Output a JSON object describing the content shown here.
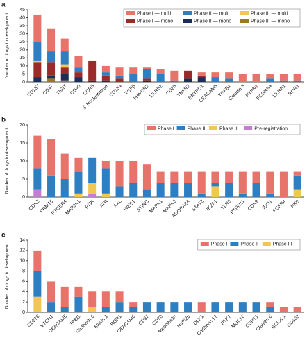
{
  "chart_data": [
    {
      "type": "stacked_bar",
      "label": "a",
      "ylabel": "Number of drugs in development",
      "categories": [
        "CD137",
        "CD47",
        "TIGIT",
        "CD40",
        "CCR8",
        "5' Nucleotidase",
        "CD134",
        "TGFβ",
        "HAVCR2",
        "LILRB2",
        "CD28",
        "TNFR2",
        "ENTPD1",
        "CEACAM5",
        "TGFB1",
        "Claudin 6",
        "PTPN1",
        "FCGR3A",
        "LILRB1",
        "ROR1"
      ],
      "series": [
        {
          "name": "Phase I — multi",
          "color": "#e8736b",
          "values": [
            17,
            14,
            8,
            7,
            0,
            4,
            5,
            4,
            1,
            3,
            6,
            0,
            2,
            3,
            4,
            5,
            5,
            3,
            4,
            4
          ]
        },
        {
          "name": "Phase II — multi",
          "color": "#2e7fc2",
          "values": [
            12,
            7,
            8,
            3,
            0,
            2,
            2,
            5,
            6,
            5,
            1,
            0,
            0,
            3,
            2,
            0,
            0,
            2,
            1,
            1
          ]
        },
        {
          "name": "Phase III — multi",
          "color": "#f0c752",
          "values": [
            1,
            0,
            2,
            0,
            0,
            0,
            0,
            0,
            0,
            0,
            0,
            0,
            0,
            0,
            0,
            0,
            0,
            0,
            0,
            0
          ]
        },
        {
          "name": "Phase I — mono",
          "color": "#9b2b2b",
          "values": [
            9,
            8,
            4,
            3,
            12,
            3,
            2,
            0,
            1,
            0,
            0,
            5,
            1,
            0,
            0,
            0,
            0,
            0,
            0,
            0
          ]
        },
        {
          "name": "Phase II — mono",
          "color": "#1a2e57",
          "values": [
            3,
            2,
            4,
            3,
            1,
            1,
            0,
            0,
            1,
            0,
            0,
            2,
            3,
            0,
            0,
            0,
            0,
            0,
            0,
            0
          ]
        },
        {
          "name": "Phase III — mono",
          "color": "#9b7a1f",
          "values": [
            0,
            2,
            1,
            0,
            0,
            0,
            0,
            0,
            0,
            0,
            0,
            0,
            0,
            0,
            0,
            0,
            0,
            0,
            0,
            0
          ]
        }
      ],
      "ylim": [
        0,
        45
      ],
      "yticks": [
        0,
        5,
        10,
        15,
        20,
        25,
        30,
        35,
        40,
        45
      ],
      "legend": "upper right"
    },
    {
      "type": "stacked_bar",
      "label": "b",
      "ylabel": "Number of drugs in development",
      "categories": [
        "CDK2",
        "PRMT5",
        "PTGER4",
        "MAP3K1",
        "PI3K",
        "ATR",
        "AXL",
        "WEE1",
        "STING",
        "MAPK1",
        "MAPK3",
        "ADORA2A",
        "STAT3",
        "IKZF1",
        "TLR8",
        "PTPN11",
        "CDK9",
        "IDO1",
        "FGFR4",
        "PKB"
      ],
      "series": [
        {
          "name": "Phase I",
          "color": "#e8736b",
          "values": [
            9,
            10,
            7,
            4,
            0,
            2,
            7,
            6,
            7,
            3,
            3,
            3,
            6,
            3,
            3,
            6,
            3,
            6,
            7,
            1
          ]
        },
        {
          "name": "Phase II",
          "color": "#2e7fc2",
          "values": [
            6,
            6,
            5,
            6,
            7,
            7,
            3,
            4,
            2,
            4,
            4,
            4,
            1,
            1,
            4,
            1,
            4,
            1,
            0,
            4
          ]
        },
        {
          "name": "Phase III",
          "color": "#f0c752",
          "values": [
            0,
            0,
            0,
            1,
            3,
            1,
            0,
            0,
            0,
            0,
            0,
            0,
            0,
            3,
            0,
            0,
            0,
            0,
            0,
            2
          ]
        },
        {
          "name": "Pre-registration",
          "color": "#c27fd0",
          "values": [
            2,
            0,
            0,
            0,
            1,
            0,
            0,
            0,
            0,
            0,
            0,
            0,
            0,
            0,
            0,
            0,
            0,
            0,
            0,
            0
          ]
        }
      ],
      "ylim": [
        0,
        20
      ],
      "yticks": [
        0,
        5,
        10,
        15,
        20
      ],
      "legend": "upper right"
    },
    {
      "type": "stacked_bar",
      "label": "c",
      "ylabel": "Number of drugs in development",
      "categories": [
        "CD276",
        "VTCN1",
        "CEACAM5",
        "TPBG",
        "Cadherin 6",
        "Mucin 1",
        "ROR1",
        "CEACAM6",
        "CD37",
        "CD70",
        "Mesothelin",
        "NaPi2b",
        "DLK1",
        "Cadherin 17",
        "PTK7",
        "MUC16",
        "GSPT1",
        "Claudin 6",
        "BCL2L1",
        "CD303"
      ],
      "series": [
        {
          "name": "Phase I",
          "color": "#e8736b",
          "values": [
            4,
            4,
            4,
            2,
            3,
            3,
            2,
            1,
            0,
            0,
            0,
            0,
            2,
            0,
            0,
            0,
            0,
            1,
            1,
            1
          ]
        },
        {
          "name": "Phase II",
          "color": "#2e7fc2",
          "values": [
            5,
            2,
            1,
            3,
            0,
            1,
            2,
            1,
            2,
            2,
            2,
            2,
            0,
            2,
            2,
            2,
            2,
            1,
            0,
            0
          ]
        },
        {
          "name": "Phase III",
          "color": "#f0c752",
          "values": [
            3,
            0,
            0,
            0,
            1,
            0,
            0,
            0,
            0,
            0,
            0,
            0,
            0,
            0,
            0,
            0,
            0,
            0,
            0,
            0
          ]
        }
      ],
      "ylim": [
        0,
        14
      ],
      "yticks": [
        0,
        2,
        4,
        6,
        8,
        10,
        12,
        14
      ],
      "legend": "upper right"
    }
  ]
}
